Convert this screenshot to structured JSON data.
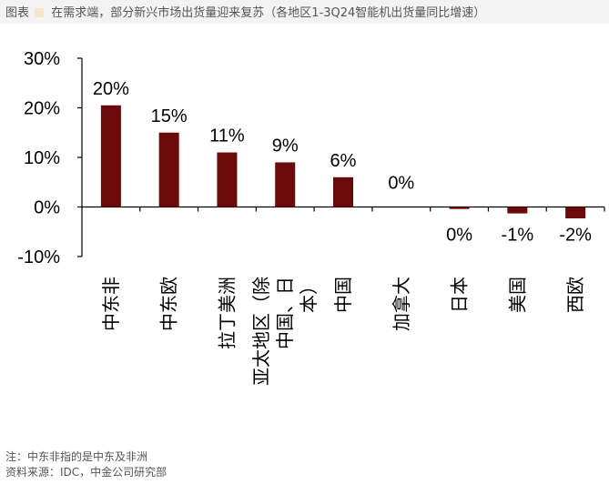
{
  "header": {
    "label": "图表",
    "title": "在需求端，部分新兴市场出货量迎来复苏（各地区1-3Q24智能机出货量同比增速）"
  },
  "footer": {
    "note": "注：中东非指的是中东及非洲",
    "source": "资料来源：IDC，中金公司研究部"
  },
  "colors": {
    "bar": "#6b0a0a",
    "axis": "#000000"
  },
  "chart_data": {
    "type": "bar",
    "title": "",
    "xlabel": "",
    "ylabel": "",
    "categories": [
      "中东非",
      "中东欧",
      "拉丁美洲",
      "亚太地区（除中国、日本）",
      "中国",
      "加拿大",
      "日本",
      "美国",
      "西欧"
    ],
    "values": [
      20.5,
      15,
      11,
      9,
      6,
      0,
      -0.4,
      -1.3,
      -2.3
    ],
    "data_labels": [
      "20%",
      "15%",
      "11%",
      "9%",
      "6%",
      "0%",
      "0%",
      "-1%",
      "-2%"
    ],
    "yticks": [
      "30%",
      "20%",
      "10%",
      "0%",
      "-10%"
    ],
    "ytick_values": [
      30,
      20,
      10,
      0,
      -10
    ],
    "ylim": [
      -10,
      30
    ],
    "grid": false,
    "legend": "none"
  }
}
